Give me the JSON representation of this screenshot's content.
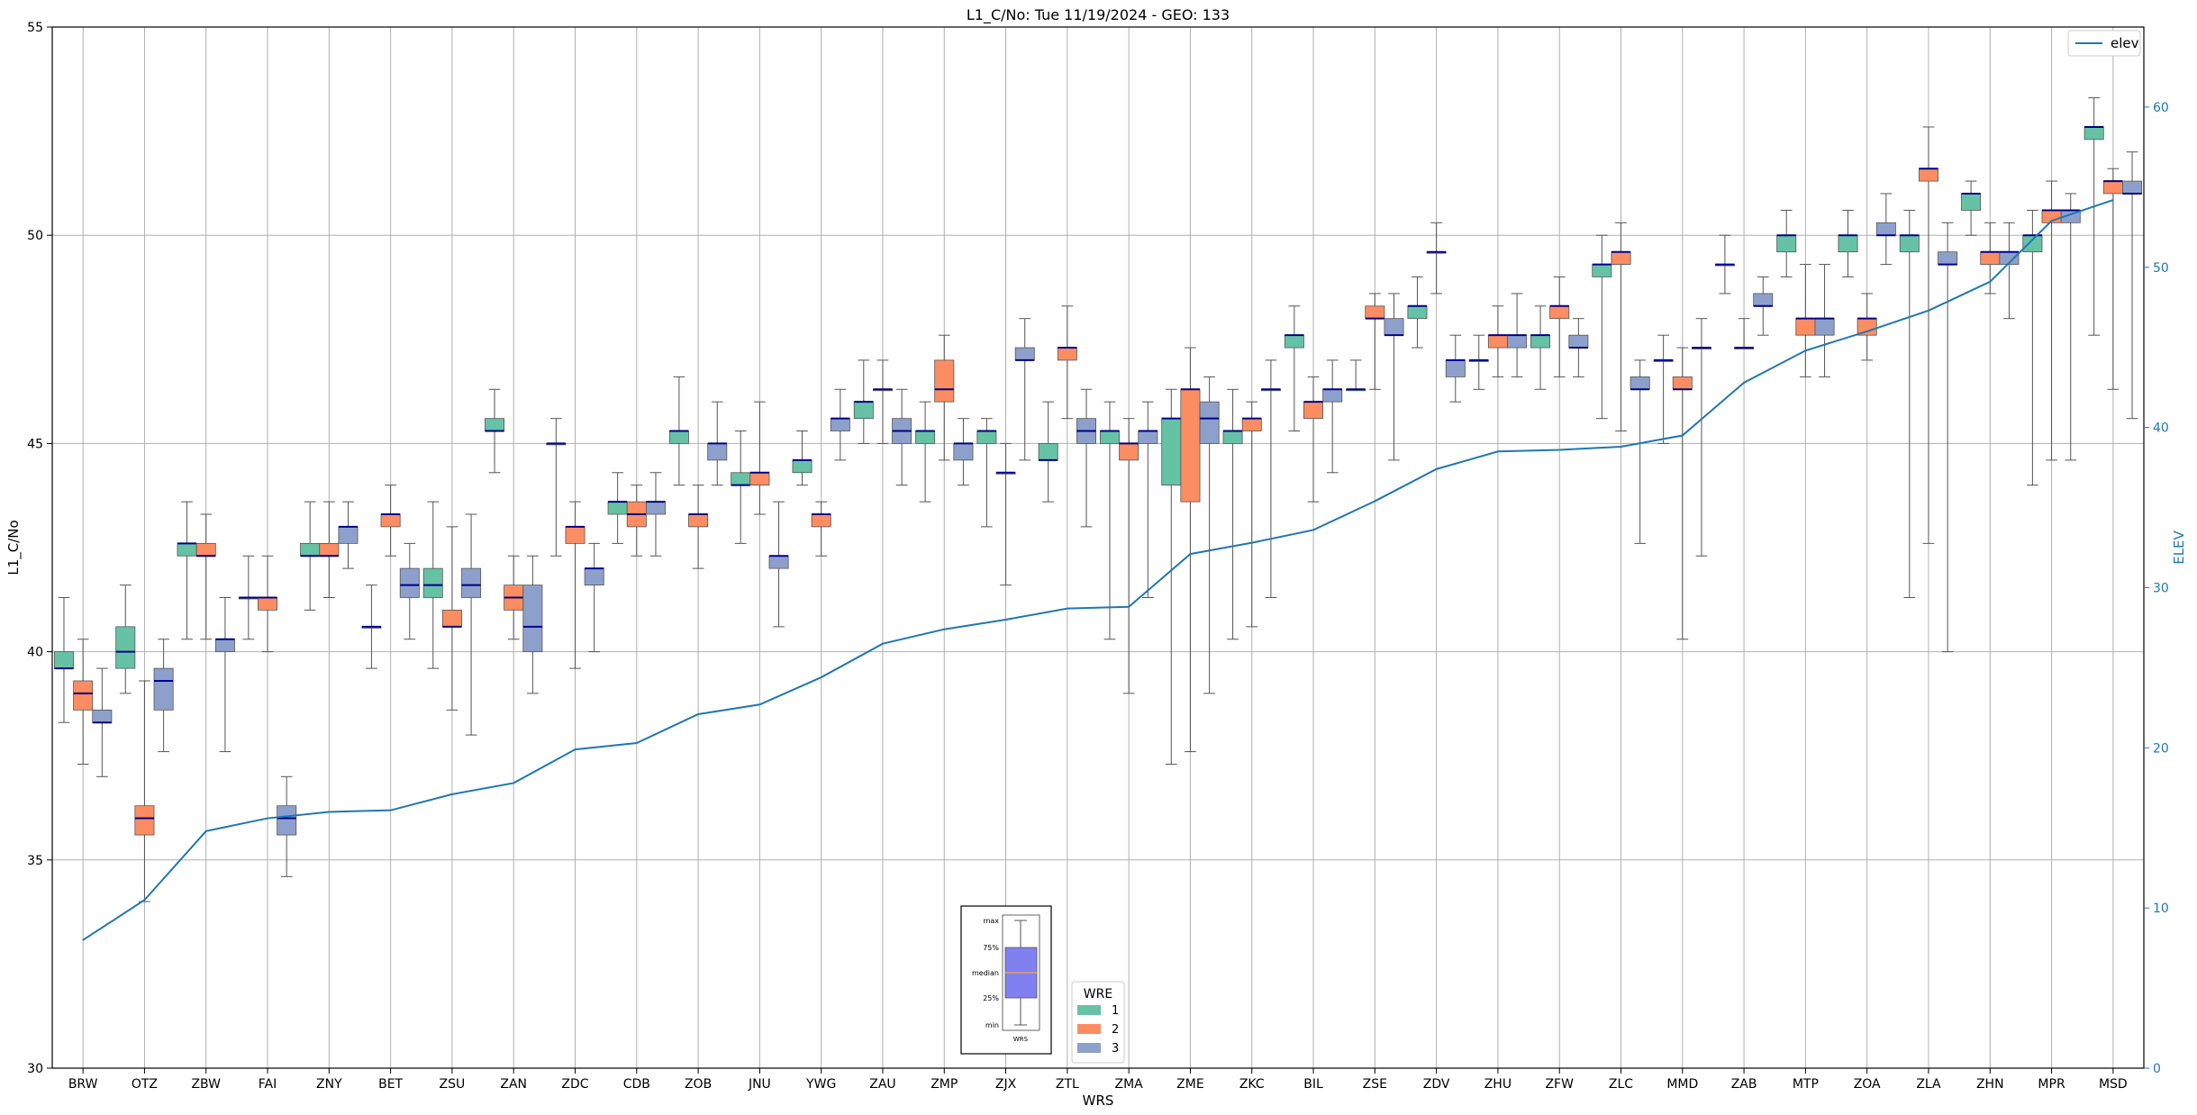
{
  "chart_data": {
    "type": "box",
    "title": "L1_C/No: Tue 11/19/2024 - GEO: 133",
    "xlabel": "WRS",
    "ylabel": "L1_C/No",
    "y2label": "ELEV",
    "ylim": [
      30,
      55
    ],
    "y2lim": [
      0,
      65
    ],
    "yticks": [
      30,
      35,
      40,
      45,
      50,
      55
    ],
    "y2ticks": [
      0,
      10,
      20,
      30,
      40,
      50,
      60
    ],
    "grid": true,
    "categories": [
      "BRW",
      "OTZ",
      "ZBW",
      "FAI",
      "ZNY",
      "BET",
      "ZSU",
      "ZAN",
      "ZDC",
      "CDB",
      "ZOB",
      "JNU",
      "YWG",
      "ZAU",
      "ZMP",
      "ZJX",
      "ZTL",
      "ZMA",
      "ZME",
      "ZKC",
      "BIL",
      "ZSE",
      "ZDV",
      "ZHU",
      "ZFW",
      "ZLC",
      "MMD",
      "ZAB",
      "MTP",
      "ZOA",
      "ZLA",
      "ZHN",
      "MPR",
      "MSD"
    ],
    "colors": {
      "wre1": "#66c2a5",
      "wre2": "#fc8d62",
      "wre3": "#8da0cb",
      "median": "#00008b",
      "whisker": "#555555",
      "elev": "#1f77b4"
    },
    "legend_wre": {
      "title": "WRE",
      "entries": [
        "1",
        "2",
        "3"
      ],
      "placement": "bottom-center"
    },
    "legend_elev": {
      "entries": [
        "elev"
      ],
      "placement": "top-right"
    },
    "inset_key": {
      "labels": [
        "max",
        "75%",
        "median",
        "25%",
        "min"
      ],
      "xlabel": "WRS"
    },
    "elev": [
      8,
      10.5,
      14.8,
      15.6,
      16,
      16.1,
      17.1,
      17.8,
      19.9,
      20.3,
      22.1,
      22.7,
      24.4,
      26.5,
      27.4,
      28,
      28.7,
      28.8,
      32.1,
      32.8,
      33.6,
      35.4,
      37.4,
      38.5,
      38.6,
      38.8,
      39.5,
      42.8,
      44.8,
      46,
      47.3,
      49.1,
      52.9,
      54.2
    ],
    "series": [
      {
        "name": "1",
        "boxes": [
          [
            38.3,
            39.6,
            39.6,
            40.0,
            41.3
          ],
          [
            39.0,
            39.6,
            40.0,
            40.6,
            41.6
          ],
          [
            40.3,
            42.3,
            42.6,
            42.6,
            43.6
          ],
          [
            40.3,
            41.3,
            41.3,
            41.3,
            42.3
          ],
          [
            41.0,
            42.3,
            42.3,
            42.6,
            43.6
          ],
          [
            39.6,
            40.6,
            40.6,
            40.6,
            41.6
          ],
          [
            39.6,
            41.3,
            41.6,
            42.0,
            43.6
          ],
          [
            44.3,
            45.3,
            45.3,
            45.6,
            46.3
          ],
          [
            42.3,
            45.0,
            45.0,
            45.0,
            45.6
          ],
          [
            42.6,
            43.3,
            43.6,
            43.6,
            44.3
          ],
          [
            44.0,
            45.0,
            45.3,
            45.3,
            46.6
          ],
          [
            42.6,
            44.0,
            44.0,
            44.3,
            45.3
          ],
          [
            44.0,
            44.3,
            44.6,
            44.6,
            45.3
          ],
          [
            45.0,
            45.6,
            46.0,
            46.0,
            47.0
          ],
          [
            43.6,
            45.0,
            45.3,
            45.3,
            46.0
          ],
          [
            43.0,
            45.0,
            45.3,
            45.3,
            45.6
          ],
          [
            43.6,
            44.6,
            44.6,
            45.0,
            46.0
          ],
          [
            40.3,
            45.0,
            45.3,
            45.3,
            46.0
          ],
          [
            37.3,
            44.0,
            45.6,
            45.6,
            46.3
          ],
          [
            40.3,
            45.0,
            45.3,
            45.3,
            46.3
          ],
          [
            45.3,
            47.3,
            47.6,
            47.6,
            48.3
          ],
          [
            46.3,
            46.3,
            46.3,
            46.3,
            47.0
          ],
          [
            47.3,
            48.0,
            48.3,
            48.3,
            49.0
          ],
          [
            46.3,
            47.0,
            47.0,
            47.0,
            47.6
          ],
          [
            46.3,
            47.3,
            47.6,
            47.6,
            48.3
          ],
          [
            45.6,
            49.0,
            49.3,
            49.3,
            50.0
          ],
          [
            45.0,
            47.0,
            47.0,
            47.0,
            47.6
          ],
          [
            48.6,
            49.3,
            49.3,
            49.3,
            50.0
          ],
          [
            49.0,
            49.6,
            50.0,
            50.0,
            50.6
          ],
          [
            49.0,
            49.6,
            50.0,
            50.0,
            50.6
          ],
          [
            41.3,
            49.6,
            50.0,
            50.0,
            50.6
          ],
          [
            50.0,
            50.6,
            51.0,
            51.0,
            51.3
          ],
          [
            44.0,
            49.6,
            50.0,
            50.0,
            50.6
          ],
          [
            47.6,
            52.3,
            52.6,
            52.6,
            53.3
          ]
        ]
      },
      {
        "name": "2",
        "boxes": [
          [
            37.3,
            38.6,
            39.0,
            39.3,
            40.3
          ],
          [
            34.0,
            35.6,
            36.0,
            36.3,
            39.3
          ],
          [
            40.3,
            42.3,
            42.3,
            42.6,
            43.3
          ],
          [
            40.0,
            41.0,
            41.3,
            41.3,
            42.3
          ],
          [
            41.3,
            42.3,
            42.3,
            42.6,
            43.6
          ],
          [
            42.3,
            43.0,
            43.3,
            43.3,
            44.0
          ],
          [
            38.6,
            40.6,
            40.6,
            41.0,
            43.0
          ],
          [
            40.3,
            41.0,
            41.3,
            41.6,
            42.3
          ],
          [
            39.6,
            42.6,
            43.0,
            43.0,
            43.6
          ],
          [
            42.3,
            43.0,
            43.3,
            43.6,
            44.0
          ],
          [
            42.0,
            43.0,
            43.3,
            43.3,
            44.0
          ],
          [
            43.3,
            44.0,
            44.3,
            44.3,
            46.0
          ],
          [
            42.3,
            43.0,
            43.3,
            43.3,
            43.6
          ],
          [
            45.0,
            46.3,
            46.3,
            46.3,
            47.0
          ],
          [
            44.6,
            46.0,
            46.3,
            47.0,
            47.6
          ],
          [
            41.6,
            44.3,
            44.3,
            44.3,
            45.0
          ],
          [
            45.6,
            47.0,
            47.3,
            47.3,
            48.3
          ],
          [
            39.0,
            44.6,
            45.0,
            45.0,
            45.6
          ],
          [
            37.6,
            43.6,
            46.3,
            46.3,
            47.3
          ],
          [
            40.6,
            45.3,
            45.6,
            45.6,
            46.0
          ],
          [
            43.6,
            45.6,
            46.0,
            46.0,
            46.6
          ],
          [
            46.3,
            48.0,
            48.0,
            48.3,
            48.6
          ],
          [
            48.6,
            49.6,
            49.6,
            49.6,
            50.3
          ],
          [
            46.6,
            47.3,
            47.6,
            47.6,
            48.3
          ],
          [
            46.6,
            48.0,
            48.3,
            48.3,
            49.0
          ],
          [
            45.3,
            49.3,
            49.6,
            49.6,
            50.3
          ],
          [
            40.3,
            46.3,
            46.3,
            46.6,
            47.3
          ],
          [
            47.3,
            47.3,
            47.3,
            47.3,
            48.0
          ],
          [
            46.6,
            47.6,
            48.0,
            48.0,
            49.3
          ],
          [
            47.0,
            47.6,
            48.0,
            48.0,
            48.6
          ],
          [
            42.6,
            51.3,
            51.6,
            51.6,
            52.6
          ],
          [
            48.6,
            49.3,
            49.6,
            49.6,
            50.3
          ],
          [
            44.6,
            50.3,
            50.6,
            50.6,
            51.3
          ],
          [
            46.3,
            51.0,
            51.3,
            51.3,
            51.6
          ]
        ]
      },
      {
        "name": "3",
        "boxes": [
          [
            37.0,
            38.3,
            38.3,
            38.6,
            39.6
          ],
          [
            37.6,
            38.6,
            39.3,
            39.6,
            40.3
          ],
          [
            37.6,
            40.0,
            40.3,
            40.3,
            41.3
          ],
          [
            34.6,
            35.6,
            36.0,
            36.3,
            37.0
          ],
          [
            42.0,
            42.6,
            43.0,
            43.0,
            43.6
          ],
          [
            40.3,
            41.3,
            41.6,
            42.0,
            42.6
          ],
          [
            38.0,
            41.3,
            41.6,
            42.0,
            43.3
          ],
          [
            39.0,
            40.0,
            40.6,
            41.6,
            42.3
          ],
          [
            40.0,
            41.6,
            42.0,
            42.0,
            42.6
          ],
          [
            42.3,
            43.3,
            43.6,
            43.6,
            44.3
          ],
          [
            44.0,
            44.6,
            45.0,
            45.0,
            46.0
          ],
          [
            40.6,
            42.0,
            42.3,
            42.3,
            43.6
          ],
          [
            44.6,
            45.3,
            45.6,
            45.6,
            46.3
          ],
          [
            44.0,
            45.0,
            45.3,
            45.6,
            46.3
          ],
          [
            44.0,
            44.6,
            45.0,
            45.0,
            45.6
          ],
          [
            44.6,
            47.0,
            47.0,
            47.3,
            48.0
          ],
          [
            43.0,
            45.0,
            45.3,
            45.6,
            46.3
          ],
          [
            41.3,
            45.0,
            45.3,
            45.3,
            46.0
          ],
          [
            39.0,
            45.0,
            45.6,
            46.0,
            46.6
          ],
          [
            41.3,
            46.3,
            46.3,
            46.3,
            47.0
          ],
          [
            44.3,
            46.0,
            46.3,
            46.3,
            47.0
          ],
          [
            44.6,
            47.6,
            47.6,
            48.0,
            48.6
          ],
          [
            46.0,
            46.6,
            47.0,
            47.0,
            47.6
          ],
          [
            46.6,
            47.3,
            47.6,
            47.6,
            48.6
          ],
          [
            46.6,
            47.3,
            47.3,
            47.6,
            48.0
          ],
          [
            42.6,
            46.3,
            46.3,
            46.6,
            47.0
          ],
          [
            42.3,
            47.3,
            47.3,
            47.3,
            48.0
          ],
          [
            47.6,
            48.3,
            48.3,
            48.6,
            49.0
          ],
          [
            46.6,
            47.6,
            48.0,
            48.0,
            49.3
          ],
          [
            49.3,
            50.0,
            50.0,
            50.3,
            51.0
          ],
          [
            40.0,
            49.3,
            49.3,
            49.6,
            50.3
          ],
          [
            48.0,
            49.3,
            49.6,
            49.6,
            50.3
          ],
          [
            44.6,
            50.3,
            50.6,
            50.6,
            51.0
          ],
          [
            45.6,
            51.0,
            51.0,
            51.3,
            52.0
          ]
        ]
      }
    ]
  }
}
